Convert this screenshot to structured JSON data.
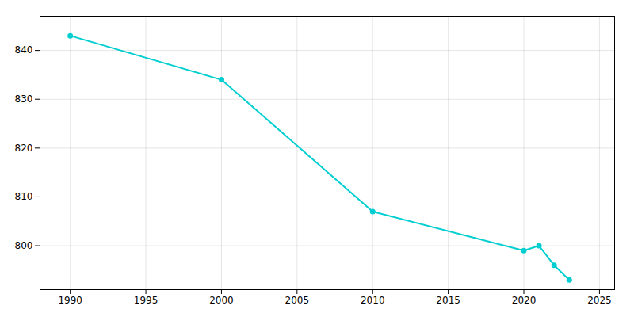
{
  "chart_data": {
    "type": "line",
    "x": [
      1990,
      2000,
      2010,
      2020,
      2021,
      2022,
      2023
    ],
    "values": [
      843,
      834,
      807,
      799,
      800,
      796,
      793
    ],
    "color": "#00CED1",
    "marker": "o",
    "xlim": [
      1988,
      2026
    ],
    "ylim": [
      791,
      847
    ],
    "xticks": [
      1990,
      1995,
      2000,
      2005,
      2010,
      2015,
      2020,
      2025
    ],
    "yticks": [
      800,
      810,
      820,
      830,
      840
    ],
    "grid": true
  }
}
